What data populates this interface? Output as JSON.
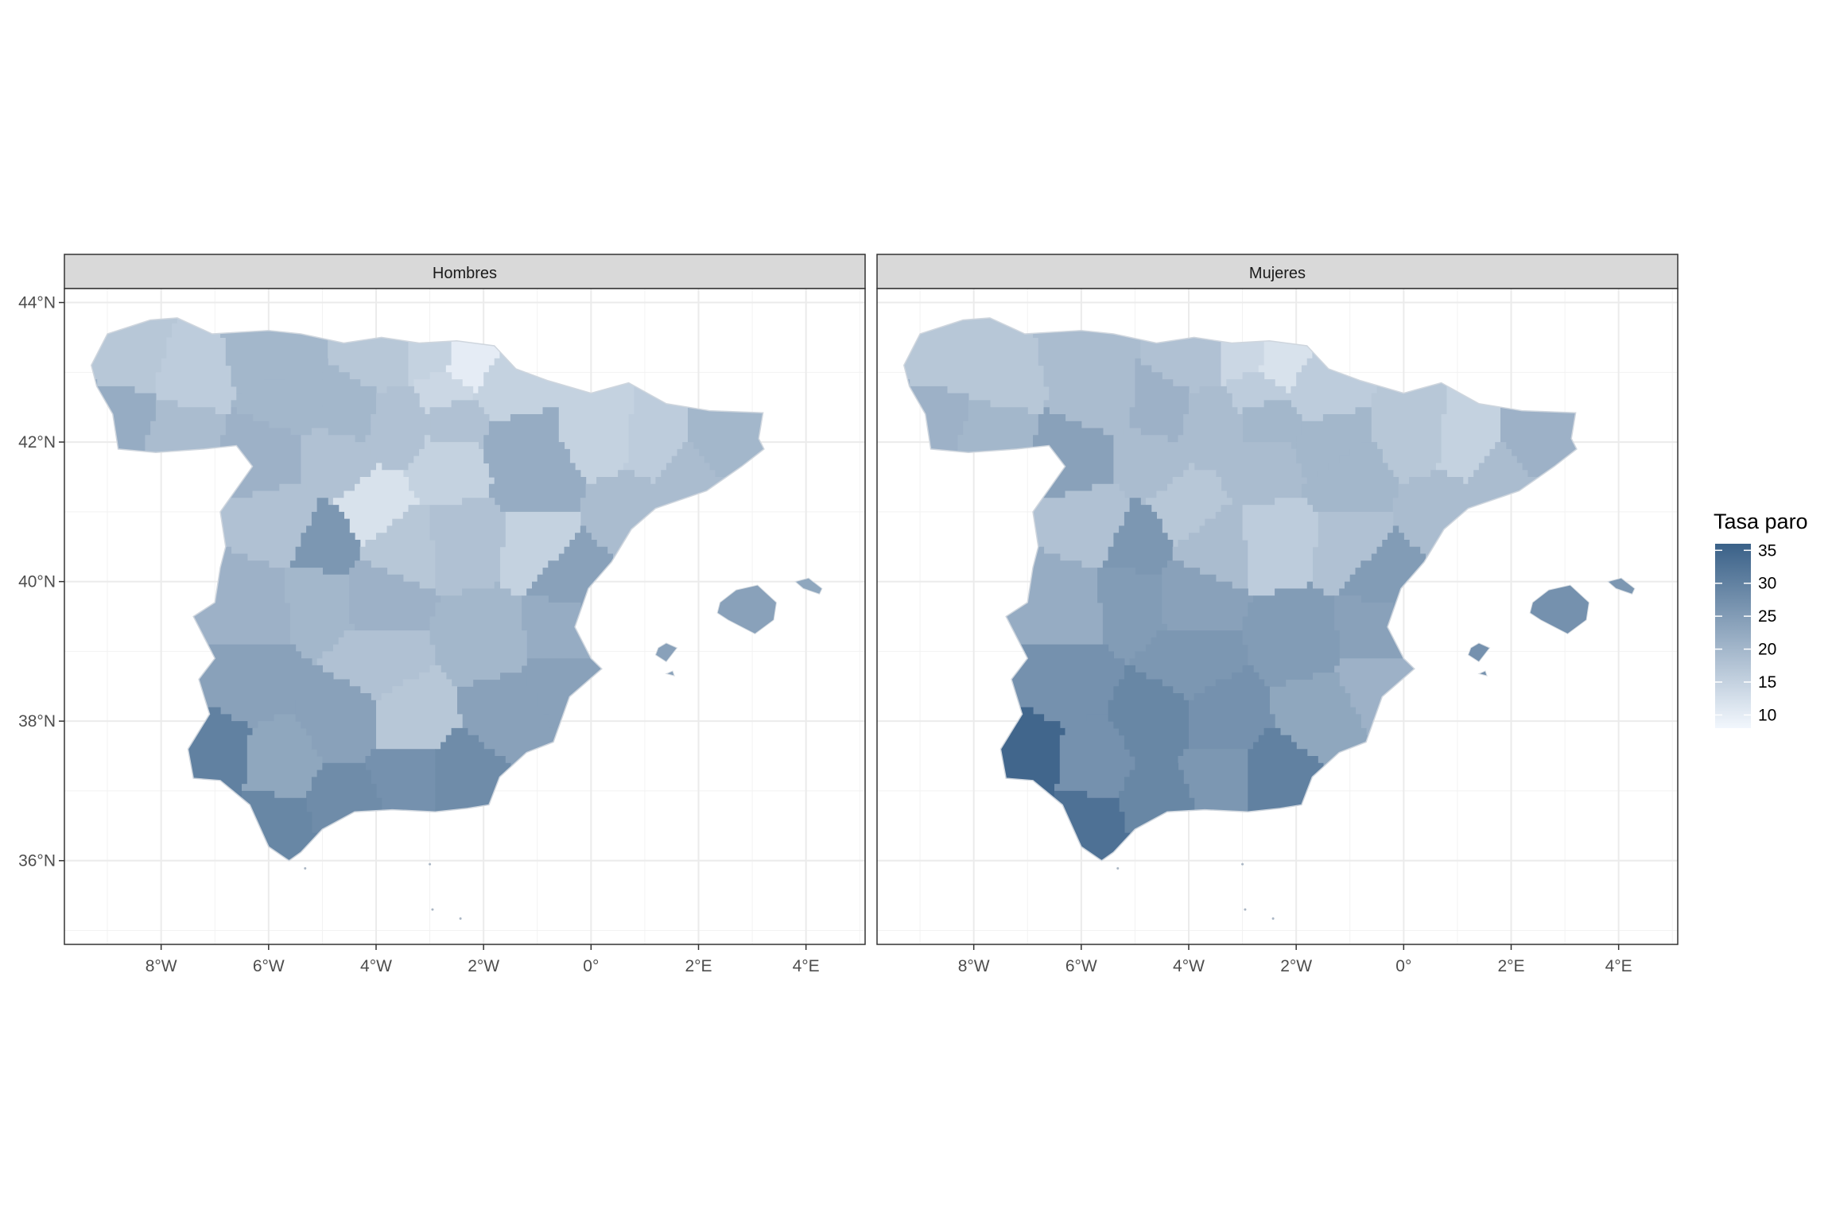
{
  "chart_data": {
    "type": "choropleth_map",
    "facets": [
      "Hombres",
      "Mujeres"
    ],
    "x_ticks": [
      "8°W",
      "6°W",
      "4°W",
      "2°W",
      "0°",
      "2°E",
      "4°E"
    ],
    "x_tick_values": [
      -8,
      -6,
      -4,
      -2,
      0,
      2,
      4
    ],
    "y_ticks": [
      "44°N",
      "42°N",
      "40°N",
      "38°N",
      "36°N"
    ],
    "y_tick_values": [
      44,
      42,
      40,
      38,
      36
    ],
    "xlim": [
      -9.8,
      5.1
    ],
    "ylim": [
      34.8,
      44.2
    ],
    "legend": {
      "title": "Tasa paro",
      "labels": [
        "35",
        "30",
        "25",
        "20",
        "15",
        "10"
      ],
      "values": [
        35,
        30,
        25,
        20,
        15,
        10
      ],
      "range": [
        8,
        36
      ],
      "placement": "right",
      "color_low": "#f2f7fd",
      "color_high": "#3a6188"
    },
    "grid": true,
    "provinces": [
      {
        "c": [
          -8.4,
          43.2
        ],
        "m": 17,
        "f": 17
      },
      {
        "c": [
          -7.6,
          43.0
        ],
        "m": 16,
        "f": 17
      },
      {
        "c": [
          -8.6,
          42.3
        ],
        "m": 22,
        "f": 21
      },
      {
        "c": [
          -7.8,
          42.1
        ],
        "m": 19,
        "f": 20
      },
      {
        "c": [
          -5.9,
          43.3
        ],
        "m": 20,
        "f": 19
      },
      {
        "c": [
          -4.0,
          43.2
        ],
        "m": 17,
        "f": 18
      },
      {
        "c": [
          -2.9,
          43.2
        ],
        "m": 15,
        "f": 14
      },
      {
        "c": [
          -2.4,
          43.1
        ],
        "m": 10,
        "f": 12
      },
      {
        "c": [
          -2.7,
          42.8
        ],
        "m": 14,
        "f": 16
      },
      {
        "c": [
          -1.6,
          42.7
        ],
        "m": 15,
        "f": 16
      },
      {
        "c": [
          -2.5,
          42.3
        ],
        "m": 18,
        "f": 20
      },
      {
        "c": [
          -5.6,
          42.6
        ],
        "m": 20,
        "f": 19
      },
      {
        "c": [
          -4.5,
          42.5
        ],
        "m": 20,
        "f": 21
      },
      {
        "c": [
          -3.6,
          42.3
        ],
        "m": 18,
        "f": 19
      },
      {
        "c": [
          -6.0,
          41.8
        ],
        "m": 21,
        "f": 24
      },
      {
        "c": [
          -4.8,
          41.7
        ],
        "m": 18,
        "f": 19
      },
      {
        "c": [
          -2.6,
          41.7
        ],
        "m": 15,
        "f": 19
      },
      {
        "c": [
          -4.1,
          41.0
        ],
        "m": 12,
        "f": 17
      },
      {
        "c": [
          -5.7,
          40.9
        ],
        "m": 18,
        "f": 18
      },
      {
        "c": [
          -4.9,
          40.6
        ],
        "m": 26,
        "f": 26
      },
      {
        "c": [
          -3.6,
          40.5
        ],
        "m": 17,
        "f": 19
      },
      {
        "c": [
          -1.4,
          42.0
        ],
        "m": 22,
        "f": 20
      },
      {
        "c": [
          0.2,
          42.1
        ],
        "m": 15,
        "f": 17
      },
      {
        "c": [
          -1.0,
          41.5
        ],
        "m": 22,
        "f": 20
      },
      {
        "c": [
          1.2,
          42.0
        ],
        "m": 16,
        "f": 15
      },
      {
        "c": [
          2.3,
          41.9
        ],
        "m": 20,
        "f": 21
      },
      {
        "c": [
          1.9,
          41.6
        ],
        "m": 19,
        "f": 19
      },
      {
        "c": [
          0.7,
          41.0
        ],
        "m": 19,
        "f": 19
      },
      {
        "c": [
          -1.0,
          40.5
        ],
        "m": 15,
        "f": 18
      },
      {
        "c": [
          -2.3,
          40.6
        ],
        "m": 18,
        "f": 16
      },
      {
        "c": [
          -0.4,
          40.1
        ],
        "m": 24,
        "f": 25
      },
      {
        "c": [
          -0.6,
          39.3
        ],
        "m": 22,
        "f": 24
      },
      {
        "c": [
          -0.5,
          38.5
        ],
        "m": 24,
        "f": 21
      },
      {
        "c": [
          -1.5,
          38.1
        ],
        "m": 24,
        "f": 23
      },
      {
        "c": [
          -6.3,
          39.6
        ],
        "m": 21,
        "f": 22
      },
      {
        "c": [
          -5.0,
          39.7
        ],
        "m": 20,
        "f": 25
      },
      {
        "c": [
          -4.0,
          39.8
        ],
        "m": 21,
        "f": 24
      },
      {
        "c": [
          -4.0,
          38.9
        ],
        "m": 18,
        "f": 26
      },
      {
        "c": [
          -1.9,
          39.2
        ],
        "m": 20,
        "f": 25
      },
      {
        "c": [
          -6.3,
          38.6
        ],
        "m": 24,
        "f": 27
      },
      {
        "c": [
          -7.0,
          37.5
        ],
        "m": 30,
        "f": 35
      },
      {
        "c": [
          -5.8,
          37.4
        ],
        "m": 23,
        "f": 27
      },
      {
        "c": [
          -4.6,
          38.0
        ],
        "m": 24,
        "f": 29
      },
      {
        "c": [
          -3.4,
          38.0
        ],
        "m": 17,
        "f": 27
      },
      {
        "c": [
          -3.4,
          37.2
        ],
        "m": 27,
        "f": 26
      },
      {
        "c": [
          -2.4,
          37.2
        ],
        "m": 28,
        "f": 30
      },
      {
        "c": [
          -4.6,
          36.8
        ],
        "m": 28,
        "f": 29
      },
      {
        "c": [
          -5.9,
          36.5
        ],
        "m": 29,
        "f": 33
      },
      {
        "c": [
          3.0,
          39.6
        ],
        "m": 24,
        "f": 27
      },
      {
        "c": [
          1.4,
          38.9
        ],
        "m": 24,
        "f": 27
      },
      {
        "c": [
          4.1,
          39.95
        ],
        "m": 23,
        "f": 26
      }
    ]
  }
}
